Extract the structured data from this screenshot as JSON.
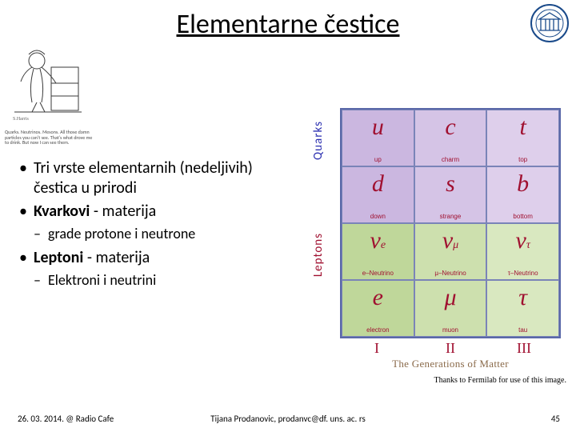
{
  "title": "Elementarne čestice",
  "cartoon_caption": "Quarks. Neutrinos. Mesons. All those damn particles you can't see. That's what drove me to drink. But now I can see them.",
  "bullets": [
    {
      "level": 1,
      "text": "Tri vrste elementarnih (nedeljivih) čestica u prirodi",
      "bold": false
    },
    {
      "level": 1,
      "html": "<span class='bold'>Kvarkovi</span> - materija",
      "bold": true
    },
    {
      "level": 2,
      "text": "grade protone i neutrone"
    },
    {
      "level": 1,
      "html": "<span class='bold'>Leptoni</span> - materija",
      "bold": true
    },
    {
      "level": 2,
      "text": "Elektroni i neutrini"
    }
  ],
  "chart": {
    "row_labels": [
      "Quarks",
      "Leptons"
    ],
    "row_label_colors": [
      "#2b2fb0",
      "#a01030"
    ],
    "gen_romans": [
      "I",
      "II",
      "III"
    ],
    "gen_title": "The Generations of Matter",
    "border_color": "#5a68a8",
    "cells": [
      [
        {
          "sym": "u",
          "label": "up",
          "bg": "#cbb7e0",
          "sym_color": "#a01030"
        },
        {
          "sym": "c",
          "label": "charm",
          "bg": "#d5c4e6",
          "sym_color": "#a01030"
        },
        {
          "sym": "t",
          "label": "top",
          "bg": "#decfeb",
          "sym_color": "#a01030"
        }
      ],
      [
        {
          "sym": "d",
          "label": "down",
          "bg": "#cbb7e0",
          "sym_color": "#a01030"
        },
        {
          "sym": "s",
          "label": "strange",
          "bg": "#d5c4e6",
          "sym_color": "#a01030"
        },
        {
          "sym": "b",
          "label": "bottom",
          "bg": "#decfeb",
          "sym_color": "#a01030"
        }
      ],
      [
        {
          "sym": "ν",
          "sub": "e",
          "label": "e–Neutrino",
          "bg": "#bfd79a",
          "sym_color": "#a01030"
        },
        {
          "sym": "ν",
          "sub": "μ",
          "label": "µ–Neutrino",
          "bg": "#cde0ae",
          "sym_color": "#a01030"
        },
        {
          "sym": "ν",
          "sub": "τ",
          "label": "τ–Neutrino",
          "bg": "#d9e8c0",
          "sym_color": "#a01030"
        }
      ],
      [
        {
          "sym": "e",
          "label": "electron",
          "bg": "#bfd79a",
          "sym_color": "#a01030"
        },
        {
          "sym": "μ",
          "label": "muon",
          "bg": "#cde0ae",
          "sym_color": "#a01030"
        },
        {
          "sym": "τ",
          "label": "tau",
          "bg": "#d9e8c0",
          "sym_color": "#a01030"
        }
      ]
    ]
  },
  "credit": "Thanks to Fermilab for use of this image.",
  "footer": {
    "date": "26. 03. 2014. @ Radio Cafe",
    "author": "Tijana Prodanovic, prodanvc@df. uns. ac. rs",
    "page": "45"
  }
}
